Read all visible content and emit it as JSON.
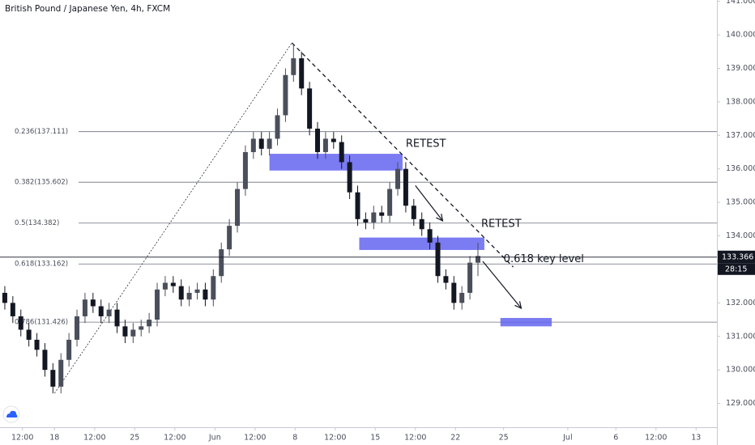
{
  "chart_data": {
    "type": "candlestick",
    "title": "British Pound / Japanese Yen, 4h, FXCM",
    "x": [
      0.3,
      0.8,
      1.3,
      1.8,
      2.3,
      2.8,
      3.3,
      3.8,
      4.3,
      4.8,
      5.3,
      5.8,
      6.3,
      6.8,
      7.3,
      7.8,
      8.3,
      8.8,
      9.3,
      9.8,
      10.3,
      10.8,
      11.3,
      11.8,
      12.3,
      12.8,
      13.3,
      13.8,
      14.3,
      14.8,
      15.3,
      15.8,
      16.3,
      16.8,
      17.3,
      17.8,
      18.3,
      18.8,
      19.3,
      19.8,
      20.3,
      20.8,
      21.3,
      21.8,
      22.3,
      22.8,
      23.3,
      23.8,
      24.3,
      24.8,
      25.3,
      25.8,
      26.3,
      26.8,
      27.3,
      27.8,
      28.3,
      28.8,
      29.3,
      29.8
    ],
    "open": [
      132.3,
      132.0,
      131.6,
      131.2,
      130.9,
      130.6,
      130.0,
      129.5,
      130.3,
      130.9,
      131.6,
      132.1,
      131.9,
      131.6,
      131.8,
      131.3,
      131.0,
      131.2,
      131.3,
      131.5,
      132.4,
      132.6,
      132.5,
      132.1,
      132.3,
      132.4,
      132.1,
      132.8,
      133.6,
      134.3,
      135.4,
      136.5,
      136.9,
      136.6,
      136.9,
      137.6,
      138.8,
      139.3,
      138.4,
      137.2,
      136.5,
      136.9,
      136.8,
      136.2,
      135.3,
      134.5,
      134.4,
      134.7,
      134.6,
      135.4,
      136.0,
      134.9,
      134.5,
      134.2,
      133.8,
      132.8,
      132.6,
      132.0,
      132.3,
      133.2
    ],
    "high": [
      132.5,
      132.2,
      131.8,
      131.4,
      131.1,
      130.8,
      130.2,
      130.5,
      131.1,
      131.8,
      132.3,
      132.3,
      132.1,
      132.0,
      132.0,
      131.5,
      131.4,
      131.5,
      131.7,
      132.6,
      132.8,
      132.8,
      132.7,
      132.5,
      132.6,
      132.6,
      133.0,
      133.8,
      134.5,
      135.6,
      136.7,
      137.1,
      137.1,
      137.1,
      137.8,
      139.0,
      139.7,
      139.5,
      138.6,
      137.4,
      137.1,
      137.1,
      137.0,
      136.4,
      135.5,
      134.7,
      134.9,
      134.9,
      135.6,
      136.2,
      136.2,
      135.1,
      134.7,
      134.4,
      134.0,
      133.0,
      132.8,
      132.5,
      133.4,
      133.8
    ],
    "low": [
      131.8,
      131.4,
      131.0,
      130.7,
      130.4,
      129.8,
      129.3,
      129.3,
      130.1,
      130.7,
      131.4,
      131.7,
      131.4,
      131.4,
      131.1,
      130.8,
      130.8,
      131.0,
      131.1,
      131.3,
      132.2,
      132.3,
      131.9,
      131.9,
      132.1,
      131.9,
      131.9,
      132.6,
      133.4,
      134.1,
      135.2,
      136.3,
      136.4,
      136.4,
      136.7,
      137.4,
      138.6,
      138.2,
      137.0,
      136.3,
      136.3,
      136.6,
      136.0,
      135.1,
      134.3,
      134.2,
      134.2,
      134.4,
      134.4,
      135.2,
      134.7,
      134.3,
      134.0,
      133.6,
      132.6,
      132.4,
      131.8,
      131.8,
      132.1,
      132.8
    ],
    "close": [
      132.0,
      131.6,
      131.2,
      130.9,
      130.6,
      130.0,
      129.5,
      130.3,
      130.9,
      131.6,
      132.1,
      131.9,
      131.6,
      131.8,
      131.3,
      131.0,
      131.2,
      131.3,
      131.5,
      132.4,
      132.6,
      132.5,
      132.1,
      132.3,
      132.4,
      132.1,
      132.8,
      133.6,
      134.3,
      135.4,
      136.5,
      136.9,
      136.6,
      136.9,
      137.6,
      138.8,
      139.3,
      138.4,
      137.2,
      136.5,
      136.9,
      136.8,
      136.2,
      135.3,
      134.5,
      134.4,
      134.7,
      134.6,
      135.4,
      136.0,
      134.9,
      134.5,
      134.2,
      133.8,
      132.8,
      132.6,
      132.0,
      132.3,
      133.2,
      133.4
    ],
    "up_color": "#4b4f5c",
    "down_color": "#131722",
    "xlim": [
      0,
      44.7
    ],
    "xticks": [
      {
        "value": 1.4,
        "label": "12:00"
      },
      {
        "value": 3.4,
        "label": "18"
      },
      {
        "value": 5.9,
        "label": "12:00"
      },
      {
        "value": 8.4,
        "label": "25"
      },
      {
        "value": 10.9,
        "label": "12:00"
      },
      {
        "value": 13.4,
        "label": "Jun"
      },
      {
        "value": 15.9,
        "label": "12:00"
      },
      {
        "value": 18.4,
        "label": "8"
      },
      {
        "value": 20.9,
        "label": "12:00"
      },
      {
        "value": 23.4,
        "label": "15"
      },
      {
        "value": 25.9,
        "label": "12:00"
      },
      {
        "value": 28.4,
        "label": "22"
      },
      {
        "value": 31.4,
        "label": "25"
      },
      {
        "value": 35.4,
        "label": "Jul"
      },
      {
        "value": 38.4,
        "label": "6"
      },
      {
        "value": 40.9,
        "label": "12:00"
      },
      {
        "value": 43.4,
        "label": "13"
      }
    ],
    "ylim": [
      128.29,
      141.04
    ],
    "yticks": [
      {
        "value": 141,
        "label": "141.000"
      },
      {
        "value": 140,
        "label": "140.000"
      },
      {
        "value": 139,
        "label": "139.000"
      },
      {
        "value": 138,
        "label": "138.000"
      },
      {
        "value": 137,
        "label": "137.000"
      },
      {
        "value": 136,
        "label": "136.000"
      },
      {
        "value": 135,
        "label": "135.000"
      },
      {
        "value": 134,
        "label": "134.000"
      },
      {
        "value": 132,
        "label": "132.000"
      },
      {
        "value": 131,
        "label": "131.000"
      },
      {
        "value": 130,
        "label": "130.000"
      },
      {
        "value": 129,
        "label": "129.000"
      }
    ],
    "fib_levels": [
      {
        "value": 137.111,
        "label": "0.236(137.111)"
      },
      {
        "value": 135.602,
        "label": "0.382(135.602)"
      },
      {
        "value": 134.382,
        "label": "0.5(134.382)"
      },
      {
        "value": 133.162,
        "label": "0.618(133.162)"
      },
      {
        "value": 131.426,
        "label": "0.786(131.426)"
      }
    ],
    "zones": [
      {
        "x": [
          16.8,
          25.1
        ],
        "y": [
          135.95,
          136.45
        ]
      },
      {
        "x": [
          22.4,
          30.2
        ],
        "y": [
          133.58,
          133.95
        ]
      },
      {
        "x": [
          31.2,
          34.4
        ],
        "y": [
          131.3,
          131.55
        ]
      }
    ],
    "zone_color": "#6464f0",
    "trendlines": [
      {
        "x": [
          18.2,
          32.0
        ],
        "y": [
          139.76,
          133.07
        ],
        "style": "dashed"
      },
      {
        "x": [
          3.4,
          18.2
        ],
        "y": [
          129.3,
          139.76
        ],
        "style": "dotted"
      }
    ],
    "arrows": [
      {
        "x": [
          25.9,
          27.6
        ],
        "y": [
          135.5,
          134.45
        ]
      },
      {
        "x": [
          30.1,
          32.5
        ],
        "y": [
          133.24,
          131.84
        ]
      }
    ],
    "annotations": [
      {
        "text": "RETEST",
        "x": 25.3,
        "y": 136.74
      },
      {
        "text": "RETEST",
        "x": 30.0,
        "y": 134.35
      },
      {
        "text": "0.618 key level",
        "x": 31.4,
        "y": 133.3
      }
    ],
    "last_price": {
      "value": 133.366,
      "label": "133.366"
    },
    "countdown": "28:15"
  }
}
